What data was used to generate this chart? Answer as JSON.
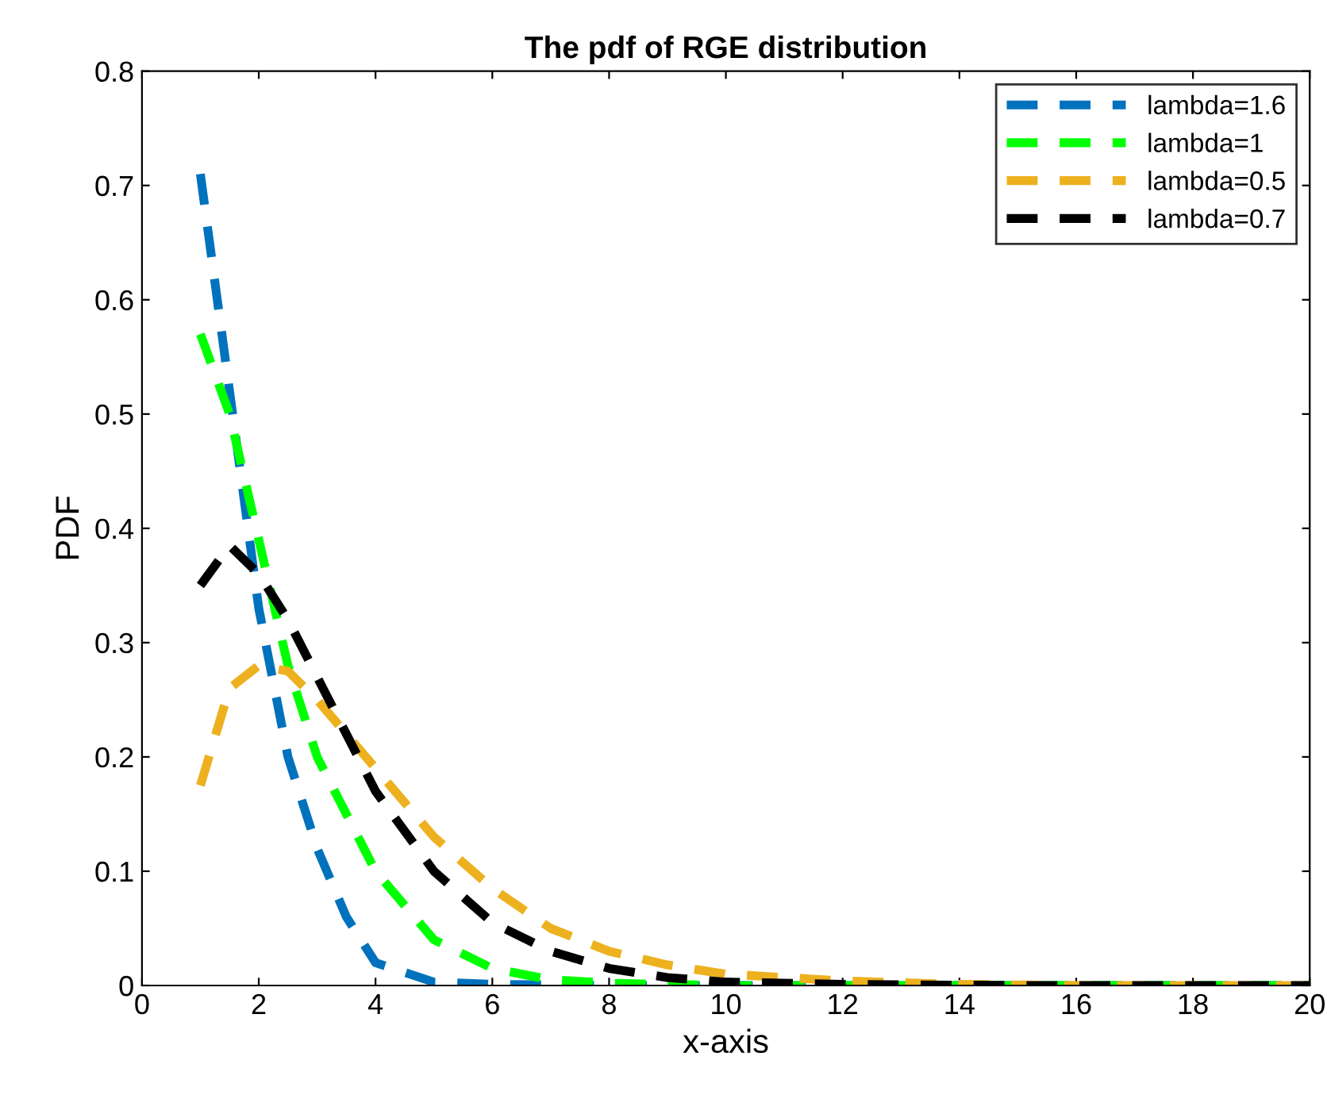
{
  "chart_data": {
    "type": "line",
    "title": "The pdf of RGE distribution",
    "xlabel": "x-axis",
    "ylabel": "PDF",
    "xlim": [
      0,
      20
    ],
    "xticks": [
      0,
      2,
      4,
      6,
      8,
      10,
      12,
      14,
      16,
      18,
      20
    ],
    "ylim": [
      0,
      0.8
    ],
    "yticks": [
      0,
      0.1,
      0.2,
      0.3,
      0.4,
      0.5,
      0.6,
      0.7,
      0.8
    ],
    "legend": "top right",
    "line_style": "dashed",
    "grid": false,
    "series": [
      {
        "name": "lambda=1.6",
        "color": "#0072bd",
        "x": [
          1,
          1.5,
          2,
          2.5,
          3,
          3.5,
          4,
          5,
          6,
          8,
          10,
          15,
          20
        ],
        "values": [
          0.71,
          0.52,
          0.33,
          0.2,
          0.12,
          0.06,
          0.02,
          0.003,
          0.001,
          0,
          0,
          0,
          0
        ]
      },
      {
        "name": "lambda=1",
        "color": "#00ff00",
        "x": [
          1,
          1.5,
          2,
          2.5,
          3,
          4,
          5,
          6,
          7,
          8,
          10,
          15,
          20
        ],
        "values": [
          0.57,
          0.5,
          0.39,
          0.28,
          0.2,
          0.1,
          0.04,
          0.015,
          0.005,
          0.002,
          0,
          0,
          0
        ]
      },
      {
        "name": "lambda=0.5",
        "color": "#edb120",
        "x": [
          1,
          1.5,
          2,
          2.5,
          3,
          4,
          5,
          6,
          7,
          8,
          9,
          10,
          12,
          14,
          16,
          20
        ],
        "values": [
          0.175,
          0.26,
          0.28,
          0.275,
          0.25,
          0.19,
          0.13,
          0.085,
          0.05,
          0.03,
          0.018,
          0.01,
          0.004,
          0.001,
          0,
          0
        ]
      },
      {
        "name": "lambda=0.7",
        "color": "#000000",
        "x": [
          1,
          1.5,
          2,
          2.5,
          3,
          4,
          5,
          6,
          7,
          8,
          9,
          10,
          12,
          15,
          20
        ],
        "values": [
          0.35,
          0.385,
          0.36,
          0.32,
          0.27,
          0.17,
          0.1,
          0.055,
          0.03,
          0.015,
          0.007,
          0.003,
          0.001,
          0,
          0
        ]
      }
    ]
  }
}
